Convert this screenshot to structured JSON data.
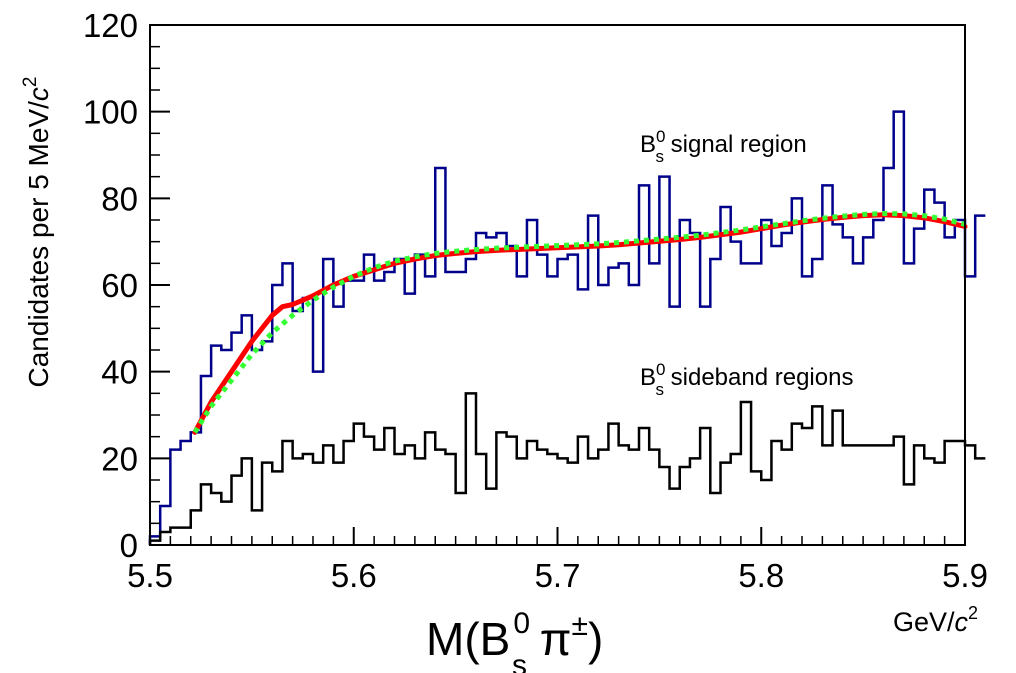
{
  "chart_data": {
    "type": "histogram",
    "xlim": [
      5.5,
      5.9
    ],
    "ylim": [
      0,
      120
    ],
    "bin_width": 0.005,
    "x_ticks": [
      "5.5",
      "5.6",
      "5.7",
      "5.8",
      "5.9"
    ],
    "x_tick_values": [
      5.5,
      5.6,
      5.7,
      5.8,
      5.9
    ],
    "y_ticks": [
      "0",
      "20",
      "40",
      "60",
      "80",
      "100",
      "120"
    ],
    "y_tick_values": [
      0,
      20,
      40,
      60,
      80,
      100,
      120
    ],
    "ylabel": {
      "prefix": "Candidates per 5 MeV/",
      "italic": "c",
      "sup": "2"
    },
    "xlabel": {
      "main": "M(B",
      "sup": "0",
      "sub": "s",
      "rest": " π",
      "rest_sup": "±",
      "close": ")"
    },
    "x_unit": {
      "text": "GeV/",
      "italic": "c",
      "sup": "2"
    },
    "annotations": [
      {
        "main": "B",
        "sup": "0",
        "sub": "s",
        "text": " signal region"
      },
      {
        "main": "B",
        "sup": "0",
        "sub": "s",
        "text": " sideband regions"
      }
    ],
    "series": [
      {
        "kind": "step",
        "color": "#00008b",
        "values": [
          2,
          9,
          22,
          24,
          26,
          39,
          46,
          45,
          49,
          53,
          45,
          47,
          60,
          65,
          54,
          57,
          40,
          66,
          55,
          61,
          61,
          67,
          61,
          63,
          66,
          58,
          67,
          62,
          87,
          63,
          63,
          66,
          72,
          71,
          72,
          69,
          62,
          75,
          67,
          62,
          66,
          67,
          59,
          76,
          60,
          64,
          65,
          60,
          83,
          65,
          85,
          55,
          75,
          72,
          55,
          66,
          78,
          70,
          65,
          65,
          75,
          69,
          72,
          80,
          62,
          66,
          83,
          74,
          71,
          65,
          71,
          75,
          87,
          100,
          65,
          73,
          82,
          79,
          71,
          75,
          62,
          76
        ]
      },
      {
        "kind": "step",
        "color": "#000000",
        "values": [
          1,
          3,
          4,
          4,
          8,
          14,
          12,
          10,
          16,
          20,
          8,
          19,
          17,
          24,
          20,
          21,
          19,
          23,
          19,
          24,
          28,
          25,
          22,
          27,
          21,
          23,
          20,
          26,
          22,
          21,
          12,
          35,
          21,
          13,
          26,
          25,
          20,
          24,
          22,
          21,
          20,
          19,
          25,
          20,
          22,
          28,
          23,
          22,
          27,
          22,
          18,
          13,
          18,
          20,
          27,
          12,
          19,
          21,
          33,
          17,
          15,
          24,
          22,
          28,
          27,
          32,
          23,
          31,
          23,
          23,
          23,
          23,
          23,
          25,
          14,
          23,
          20,
          19,
          24,
          24,
          23,
          20
        ]
      },
      {
        "kind": "line",
        "name": "fit",
        "color": "#ff0000",
        "x": [
          5.522,
          5.53,
          5.54,
          5.55,
          5.56,
          5.565,
          5.57,
          5.58,
          5.59,
          5.6,
          5.61,
          5.62,
          5.63,
          5.64,
          5.65,
          5.66,
          5.67,
          5.68,
          5.69,
          5.7,
          5.71,
          5.72,
          5.73,
          5.74,
          5.75,
          5.76,
          5.77,
          5.78,
          5.79,
          5.8,
          5.81,
          5.82,
          5.83,
          5.84,
          5.85,
          5.86,
          5.87,
          5.88,
          5.89,
          5.9
        ],
        "y": [
          26,
          33,
          40,
          47,
          53,
          55,
          55.5,
          57.5,
          60,
          62,
          63.5,
          65,
          66,
          66.8,
          67.3,
          67.7,
          68,
          68.2,
          68.4,
          68.6,
          68.8,
          69,
          69.3,
          69.7,
          70.1,
          70.5,
          71,
          71.6,
          72.2,
          73,
          73.8,
          74.5,
          75.1,
          75.6,
          76,
          76.2,
          76,
          75.5,
          74.6,
          73.5
        ]
      },
      {
        "kind": "dotted",
        "name": "background",
        "color": "#33ff33",
        "x": [
          5.522,
          5.53,
          5.54,
          5.55,
          5.56,
          5.57,
          5.58,
          5.59,
          5.6,
          5.61,
          5.62,
          5.63,
          5.64,
          5.65,
          5.66,
          5.67,
          5.68,
          5.69,
          5.7,
          5.71,
          5.72,
          5.73,
          5.74,
          5.75,
          5.76,
          5.77,
          5.78,
          5.79,
          5.8,
          5.81,
          5.82,
          5.83,
          5.84,
          5.85,
          5.86,
          5.87,
          5.88,
          5.89,
          5.9
        ],
        "y": [
          26,
          32,
          38,
          44,
          49,
          53,
          56.5,
          59.5,
          62,
          64,
          65.5,
          66.5,
          67.3,
          67.8,
          68.2,
          68.5,
          68.7,
          68.9,
          69.1,
          69.3,
          69.5,
          69.8,
          70.2,
          70.6,
          71,
          71.5,
          72.1,
          72.7,
          73.4,
          74.1,
          74.8,
          75.4,
          75.9,
          76.3,
          76.5,
          76.4,
          76,
          75.2,
          74
        ]
      }
    ]
  }
}
